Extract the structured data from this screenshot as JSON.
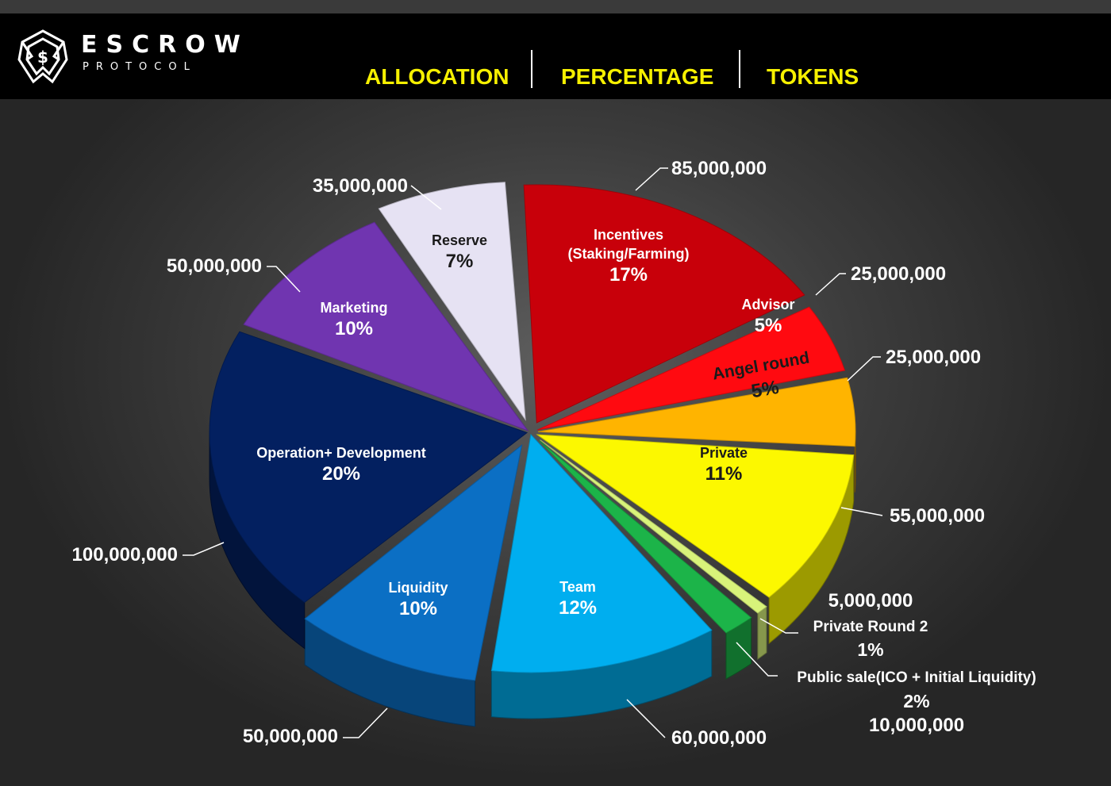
{
  "brand": {
    "name": "ESCROW",
    "sub": "PROTOCOL"
  },
  "header": {
    "col1": "ALLOCATION",
    "col2": "PERCENTAGE",
    "col3": "TOKENS"
  },
  "chart_data": {
    "type": "pie",
    "title": "",
    "slices": [
      {
        "label": "Incentives (Staking/Farming)",
        "label_lines": [
          "Incentives",
          "(Staking/Farming)"
        ],
        "percent_label": "17%",
        "percent": 17,
        "tokens": "85,000,000",
        "color": "#c8000a"
      },
      {
        "label": "Advisor",
        "label_lines": [
          "Advisor"
        ],
        "percent_label": "5%",
        "percent": 5,
        "tokens": "25,000,000",
        "color": "#ff0a10"
      },
      {
        "label": "Angel round",
        "label_lines": [
          "Angel round"
        ],
        "percent_label": "5%",
        "percent": 5,
        "tokens": "25,000,000",
        "color": "#ffb400"
      },
      {
        "label": "Private",
        "label_lines": [
          "Private"
        ],
        "percent_label": "11%",
        "percent": 11,
        "tokens": "55,000,000",
        "color": "#fcf800"
      },
      {
        "label": "Private Round 2",
        "label_lines": [
          "Private Round 2"
        ],
        "percent_label": "1%",
        "percent": 1,
        "tokens": "5,000,000",
        "color": "#d8f37a"
      },
      {
        "label": "Public sale(ICO + Initial Liquidity)",
        "label_lines": [
          "Public sale(ICO + Initial Liquidity)"
        ],
        "percent_label": "2%",
        "percent": 2,
        "tokens": "10,000,000",
        "color": "#1cb449"
      },
      {
        "label": "Team",
        "label_lines": [
          "Team"
        ],
        "percent_label": "12%",
        "percent": 12,
        "tokens": "60,000,000",
        "color": "#00aeef"
      },
      {
        "label": "Liquidity",
        "label_lines": [
          "Liquidity"
        ],
        "percent_label": "10%",
        "percent": 10,
        "tokens": "50,000,000",
        "color": "#0b6fc4"
      },
      {
        "label": "Operation+ Development",
        "label_lines": [
          "Operation+ Development"
        ],
        "percent_label": "20%",
        "percent": 20,
        "tokens": "100,000,000",
        "color": "#032060"
      },
      {
        "label": "Marketing",
        "label_lines": [
          "Marketing"
        ],
        "percent_label": "10%",
        "percent": 10,
        "tokens": "50,000,000",
        "color": "#7035b0"
      },
      {
        "label": "Reserve",
        "label_lines": [
          "Reserve"
        ],
        "percent_label": "7%",
        "percent": 7,
        "tokens": "35,000,000",
        "color": "#e6e2f3"
      }
    ],
    "text_colors": {
      "dark": "#1a1a1a",
      "light": "#ffffff"
    }
  }
}
